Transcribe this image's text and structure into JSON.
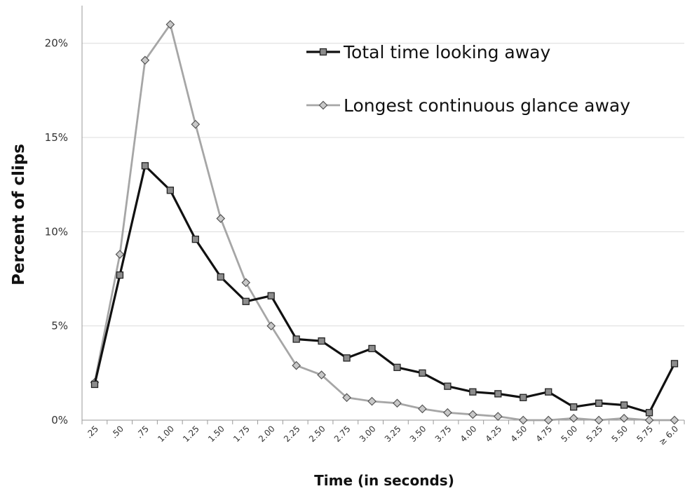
{
  "chart_data": {
    "type": "line",
    "xlabel": "Time (in seconds)",
    "ylabel": "Percent of clips",
    "categories": [
      ".25",
      ".50",
      ".75",
      "1.00",
      "1.25",
      "1.50",
      "1.75",
      "2.00",
      "2.25",
      "2.50",
      "2.75",
      "3.00",
      "3.25",
      "3.50",
      "3.75",
      "4.00",
      "4.25",
      "4.50",
      "4.75",
      "5.00",
      "5.25",
      "5.50",
      "5.75",
      "≥ 6.0"
    ],
    "ylim": [
      0,
      22
    ],
    "yticks": [
      0,
      5,
      10,
      15,
      20
    ],
    "ytick_labels": [
      "0%",
      "5%",
      "10%",
      "15%",
      "20%"
    ],
    "grid": "horizontal",
    "legend_position": "top-right",
    "series": [
      {
        "name": "Total time looking away",
        "color": "#111111",
        "marker": "square",
        "values": [
          1.9,
          7.7,
          13.5,
          12.2,
          9.6,
          7.6,
          6.3,
          6.6,
          4.3,
          4.2,
          3.3,
          3.8,
          2.8,
          2.5,
          1.8,
          1.5,
          1.4,
          1.2,
          1.5,
          0.7,
          0.9,
          0.8,
          0.4,
          3.0
        ]
      },
      {
        "name": "Longest continuous glance away",
        "color": "#a6a6a6",
        "marker": "diamond",
        "values": [
          2.0,
          8.8,
          19.1,
          21.0,
          15.7,
          10.7,
          7.3,
          5.0,
          2.9,
          2.4,
          1.2,
          1.0,
          0.9,
          0.6,
          0.4,
          0.3,
          0.2,
          0.0,
          0.0,
          0.1,
          0.0,
          0.1,
          0.0,
          0.0
        ]
      }
    ]
  }
}
